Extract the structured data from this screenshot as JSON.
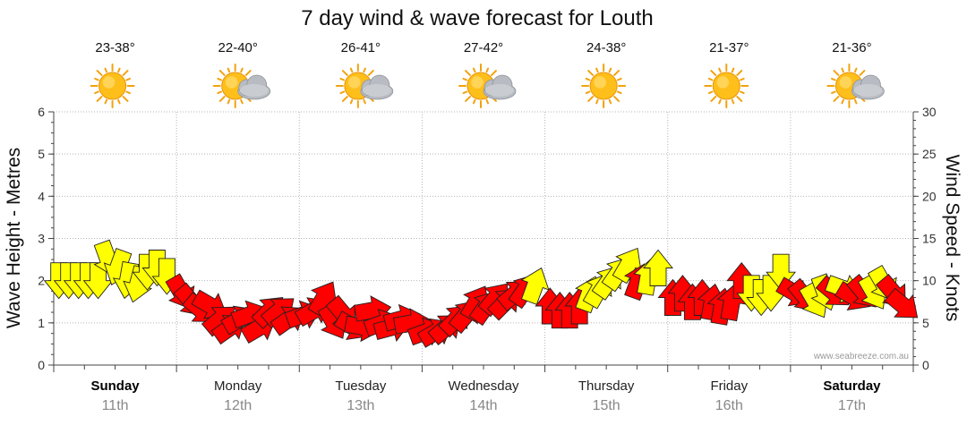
{
  "chart_data": {
    "type": "scatter",
    "title": "7 day wind & wave forecast for Louth",
    "ylabel_left": "Wave Height - Metres",
    "ylabel_right": "Wind Speed - Knots",
    "ylim_left": [
      0,
      6
    ],
    "ylim_right": [
      0,
      30
    ],
    "left_ticks": [
      "0",
      "1",
      "2",
      "3",
      "4",
      "5",
      "6"
    ],
    "right_ticks": [
      "0",
      "5",
      "10",
      "15",
      "20",
      "25",
      "30"
    ],
    "credit": "www.seabreeze.com.au",
    "colors": {
      "light_wind": "#ffff00",
      "strong_wind": "#ff0000",
      "arrow_stroke": "#222222"
    },
    "days": [
      {
        "name": "Sunday",
        "date": "11th",
        "temp": "23-38°",
        "weather_icon": "sunny-icon",
        "bold": true
      },
      {
        "name": "Monday",
        "date": "12th",
        "temp": "22-40°",
        "weather_icon": "partly-cloudy-icon",
        "bold": false
      },
      {
        "name": "Tuesday",
        "date": "13th",
        "temp": "26-41°",
        "weather_icon": "partly-cloudy-icon",
        "bold": false
      },
      {
        "name": "Wednesday",
        "date": "14th",
        "temp": "27-42°",
        "weather_icon": "partly-cloudy-icon",
        "bold": false
      },
      {
        "name": "Thursday",
        "date": "15th",
        "temp": "24-38°",
        "weather_icon": "sunny-icon",
        "bold": false
      },
      {
        "name": "Friday",
        "date": "16th",
        "temp": "21-37°",
        "weather_icon": "sunny-icon",
        "bold": false
      },
      {
        "name": "Saturday",
        "date": "17th",
        "temp": "21-36°",
        "weather_icon": "partly-cloudy-icon",
        "bold": true
      }
    ],
    "series": [
      {
        "x": [
          0.0,
          0.08,
          0.16,
          0.24,
          0.32,
          0.4,
          0.48,
          0.56,
          0.64,
          0.72,
          0.8,
          0.88,
          1.0,
          1.08,
          1.16,
          1.24,
          1.32,
          1.4,
          1.48,
          1.56,
          1.64,
          1.72,
          1.8,
          1.88,
          2.0,
          2.08,
          2.16,
          2.24,
          2.32,
          2.4,
          2.48,
          2.56,
          2.64,
          2.72,
          2.8,
          2.88,
          3.0,
          3.08,
          3.16,
          3.24,
          3.32,
          3.4,
          3.48,
          3.56,
          3.64,
          3.72,
          3.8,
          3.88,
          4.0,
          4.08,
          4.16,
          4.24,
          4.32,
          4.4,
          4.48,
          4.56,
          4.64,
          4.72,
          4.8,
          4.88,
          5.0,
          5.08,
          5.16,
          5.24,
          5.32,
          5.4,
          5.48,
          5.56,
          5.64,
          5.72,
          5.8,
          5.88,
          6.0,
          6.08,
          6.16,
          6.24,
          6.32,
          6.4,
          6.48,
          6.56,
          6.64,
          6.72,
          6.8,
          6.88
        ],
        "wave_m": [
          2.0,
          2.0,
          2.0,
          2.0,
          2.0,
          2.5,
          2.3,
          2.0,
          1.9,
          2.2,
          2.3,
          2.1,
          1.7,
          1.5,
          1.3,
          1.4,
          1.1,
          0.9,
          1.1,
          1.2,
          0.9,
          1.3,
          1.3,
          1.1,
          1.2,
          1.3,
          1.6,
          1.0,
          1.2,
          0.9,
          0.9,
          1.3,
          1.0,
          0.9,
          1.1,
          1.0,
          0.8,
          0.8,
          0.9,
          1.1,
          1.2,
          1.5,
          1.4,
          1.6,
          1.5,
          1.7,
          1.8,
          1.9,
          1.4,
          1.3,
          1.3,
          1.4,
          1.7,
          1.8,
          2.0,
          2.2,
          2.4,
          2.0,
          2.1,
          2.3,
          1.6,
          1.7,
          1.5,
          1.6,
          1.5,
          1.4,
          1.5,
          2.0,
          1.7,
          1.6,
          1.7,
          2.2,
          1.7,
          1.6,
          1.5,
          1.7,
          1.7,
          1.8,
          1.6,
          1.7,
          1.7,
          1.9,
          1.7,
          1.4
        ],
        "wind_kt": [
          11,
          11,
          11,
          11,
          11,
          14,
          12,
          10,
          12,
          12,
          12,
          12,
          9,
          9,
          8,
          8,
          9,
          9,
          10,
          9,
          9,
          10,
          9,
          9,
          8,
          8,
          10,
          8,
          9,
          8,
          7,
          8,
          8,
          7,
          8,
          8,
          7,
          7,
          8,
          9,
          9,
          8,
          9,
          10,
          11,
          11,
          12,
          13,
          10,
          11,
          11,
          12,
          13,
          13,
          13,
          15,
          16,
          12,
          13,
          14,
          10,
          10,
          10,
          10,
          11,
          10,
          10,
          11,
          12,
          12,
          12,
          12,
          10,
          10,
          11,
          11,
          12,
          13,
          12,
          12,
          11,
          11,
          10,
          10
        ],
        "direction_deg": [
          0,
          0,
          0,
          0,
          0,
          340,
          20,
          10,
          15,
          0,
          0,
          0,
          330,
          320,
          310,
          300,
          230,
          235,
          240,
          250,
          240,
          225,
          230,
          235,
          250,
          240,
          210,
          330,
          320,
          300,
          280,
          260,
          250,
          255,
          255,
          260,
          250,
          240,
          230,
          225,
          220,
          210,
          215,
          220,
          225,
          230,
          215,
          200,
          180,
          180,
          180,
          180,
          200,
          210,
          215,
          215,
          210,
          200,
          190,
          180,
          180,
          180,
          180,
          180,
          190,
          190,
          190,
          180,
          0,
          0,
          0,
          0,
          300,
          320,
          330,
          340,
          310,
          290,
          300,
          320,
          330,
          330,
          320,
          310
        ]
      }
    ]
  }
}
